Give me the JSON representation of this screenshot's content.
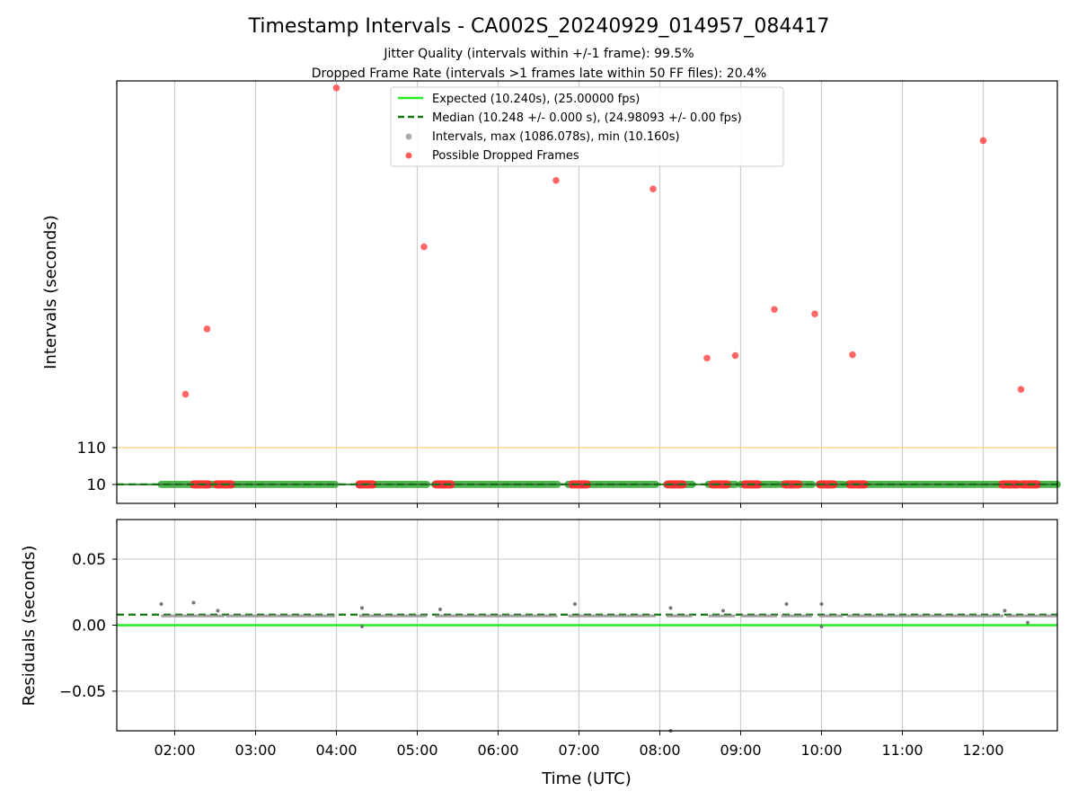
{
  "title": "Timestamp Intervals - CA002S_20240929_014957_084417",
  "subtitle_1": "Jitter Quality (intervals within +/-1 frame): 99.5%",
  "subtitle_2": "Dropped Frame Rate (intervals >1 frames late within 50 FF files): 20.4%",
  "colors": {
    "expected": "#22ee22",
    "median": "#117711",
    "intervals": "#999999",
    "dropped": "#ff3333",
    "threshold": "#ffcc77",
    "grid": "#cccccc"
  },
  "legend": {
    "expected": "Expected (10.240s), (25.00000 fps)",
    "median": "Median (10.248 +/- 0.000 s), (24.98093 +/- 0.00 fps)",
    "intervals": "Intervals, max (1086.078s), min (10.160s)",
    "dropped": "Possible Dropped Frames"
  },
  "chart_data": [
    {
      "type": "scatter",
      "panel": "top",
      "xlabel": "",
      "ylabel": "Intervals (seconds)",
      "y_ticks": [
        "10",
        "110"
      ],
      "x_range": [
        "01:17",
        "12:55"
      ],
      "threshold_line": 110,
      "expected": 10.24,
      "median": 10.248,
      "intervals_segments": [
        [
          "01:50",
          "02:37"
        ],
        [
          "02:38",
          "03:59"
        ],
        [
          "04:17",
          "05:07"
        ],
        [
          "05:13",
          "06:44"
        ],
        [
          "06:52",
          "07:57"
        ],
        [
          "08:05",
          "08:24"
        ],
        [
          "08:36",
          "08:56"
        ],
        [
          "09:00",
          "09:27"
        ],
        [
          "09:30",
          "09:53"
        ],
        [
          "09:58",
          "10:16"
        ],
        [
          "10:19",
          "12:15"
        ],
        [
          "12:17",
          "12:55"
        ]
      ],
      "dropped_points": [
        {
          "x": "02:08",
          "y": 255
        },
        {
          "x": "02:24",
          "y": 432
        },
        {
          "x": "04:00",
          "y": 1086
        },
        {
          "x": "05:05",
          "y": 655
        },
        {
          "x": "06:43",
          "y": 835
        },
        {
          "x": "07:55",
          "y": 812
        },
        {
          "x": "08:35",
          "y": 353
        },
        {
          "x": "08:56",
          "y": 360
        },
        {
          "x": "09:25",
          "y": 485
        },
        {
          "x": "09:55",
          "y": 473
        },
        {
          "x": "10:23",
          "y": 362
        },
        {
          "x": "12:00",
          "y": 943
        },
        {
          "x": "12:28",
          "y": 268
        }
      ],
      "dropped_clusters": [
        [
          "02:14",
          "02:25"
        ],
        [
          "02:31",
          "02:42"
        ],
        [
          "04:17",
          "04:27"
        ],
        [
          "05:14",
          "05:25"
        ],
        [
          "06:55",
          "07:06"
        ],
        [
          "08:06",
          "08:17"
        ],
        [
          "08:39",
          "08:50"
        ],
        [
          "09:03",
          "09:13"
        ],
        [
          "09:33",
          "09:43"
        ],
        [
          "09:59",
          "10:09"
        ],
        [
          "10:21",
          "10:32"
        ],
        [
          "12:14",
          "12:26"
        ],
        [
          "12:29",
          "12:40"
        ]
      ]
    },
    {
      "type": "scatter",
      "panel": "bottom",
      "xlabel": "Time (UTC)",
      "ylabel": "Residuals (seconds)",
      "ylim": [
        -0.08,
        0.08
      ],
      "y_ticks": [
        "0.05",
        "0.00",
        "−0.05"
      ],
      "x_tick_labels": [
        "02:00",
        "03:00",
        "04:00",
        "05:00",
        "06:00",
        "07:00",
        "08:00",
        "09:00",
        "10:00",
        "11:00",
        "12:00"
      ],
      "expected_residual": 0.0,
      "median_residual": 0.008,
      "typical_residual": 0.007,
      "outliers": [
        {
          "x": "01:50",
          "y": 0.016
        },
        {
          "x": "02:14",
          "y": 0.017
        },
        {
          "x": "02:32",
          "y": 0.011
        },
        {
          "x": "04:19",
          "y": 0.013
        },
        {
          "x": "04:19",
          "y": -0.001
        },
        {
          "x": "05:17",
          "y": 0.012
        },
        {
          "x": "06:57",
          "y": 0.016
        },
        {
          "x": "08:08",
          "y": 0.013
        },
        {
          "x": "08:47",
          "y": 0.011
        },
        {
          "x": "09:34",
          "y": 0.016
        },
        {
          "x": "10:00",
          "y": 0.016
        },
        {
          "x": "10:00",
          "y": -0.001
        },
        {
          "x": "12:16",
          "y": 0.011
        },
        {
          "x": "12:33",
          "y": 0.002
        },
        {
          "x": "08:08",
          "y": -0.08
        }
      ]
    }
  ]
}
